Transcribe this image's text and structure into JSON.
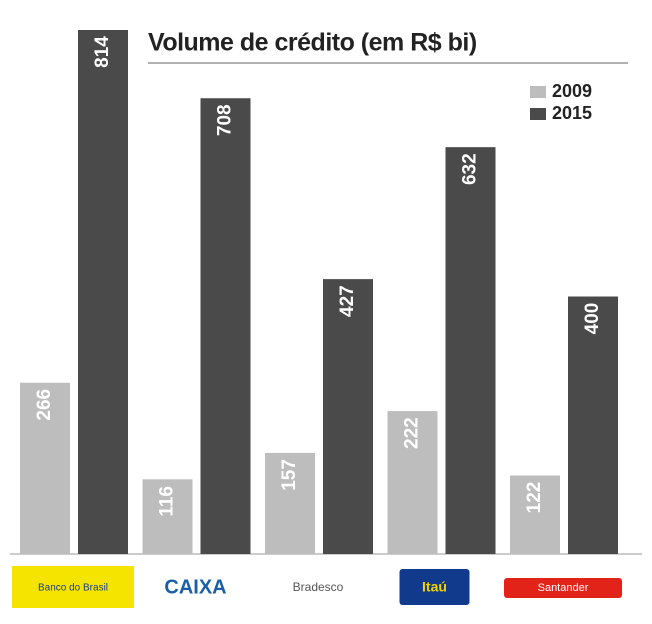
{
  "chart_data": {
    "type": "bar",
    "title": "Volume de crédito (em R$ bi)",
    "categories": [
      "Banco do Brasil",
      "CAIXA",
      "Bradesco",
      "Itaú",
      "Santander"
    ],
    "series": [
      {
        "name": "2009",
        "color": "#bdbdbd",
        "values": [
          266,
          116,
          157,
          222,
          122
        ]
      },
      {
        "name": "2015",
        "color": "#4a4a4a",
        "values": [
          814,
          708,
          427,
          632,
          400
        ]
      }
    ],
    "legend": "top-right"
  }
}
